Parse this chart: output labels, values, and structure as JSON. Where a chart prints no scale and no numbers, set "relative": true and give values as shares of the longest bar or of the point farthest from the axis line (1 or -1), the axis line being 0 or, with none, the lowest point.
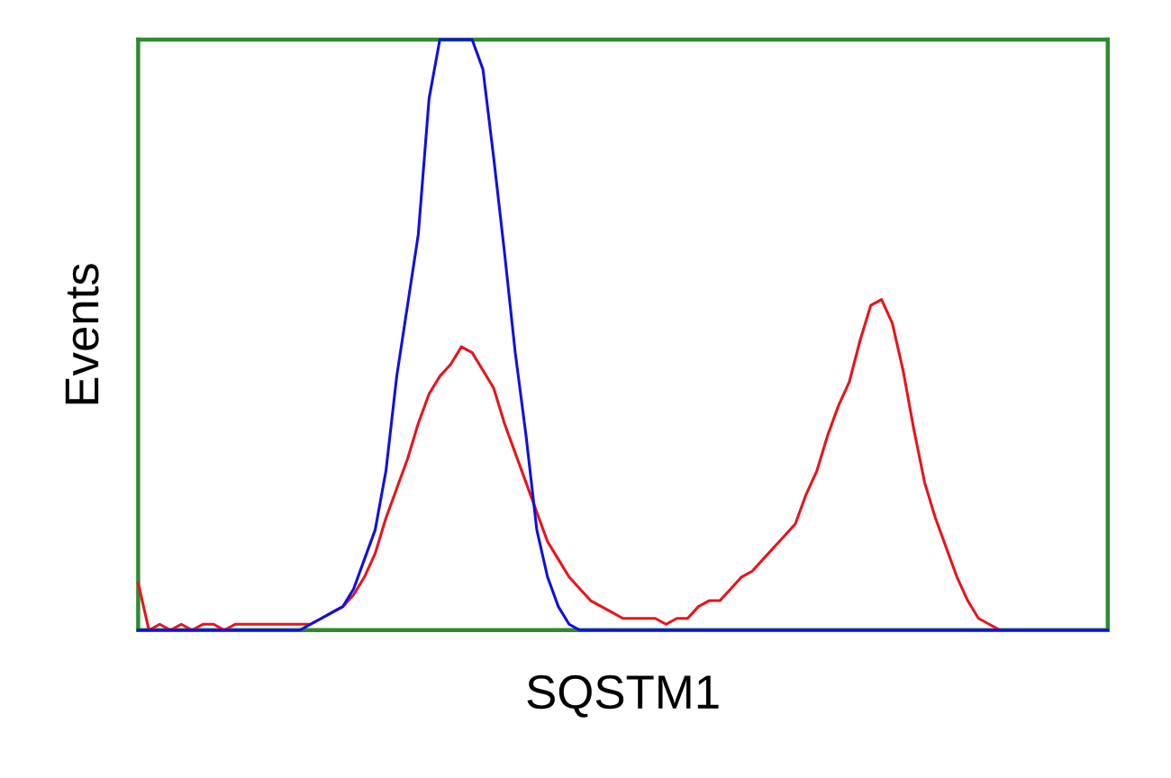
{
  "chart_data": {
    "type": "line",
    "relative": true,
    "xlabel": "SQSTM1",
    "ylabel": "Events",
    "grid": false,
    "marker": "none",
    "line_style": "solid",
    "categories": [
      null,
      null,
      null,
      null,
      null,
      null,
      null,
      null,
      null,
      null,
      null,
      null,
      null,
      null,
      null,
      null,
      null,
      null,
      null,
      null,
      null,
      null,
      null,
      null,
      null,
      null,
      null,
      null,
      null,
      null,
      null,
      null,
      null,
      null,
      null,
      null,
      null,
      null,
      null,
      null,
      null,
      null,
      null,
      null,
      null,
      null,
      null,
      null,
      null,
      null,
      null,
      null,
      null,
      null,
      null,
      null,
      null,
      null,
      null,
      null,
      null,
      null,
      null,
      null,
      null,
      null,
      null,
      null,
      null,
      null,
      null,
      null,
      null,
      null,
      null,
      null,
      null,
      null,
      null,
      null,
      null,
      null,
      null,
      null,
      null,
      null,
      null,
      null,
      null,
      null,
      null
    ],
    "series": [
      {
        "color": "#e8141c",
        "values": [
          0.08,
          0,
          0.01,
          0,
          0.01,
          0,
          0.01,
          0.01,
          0,
          0.01,
          0.01,
          0.01,
          0.01,
          0.01,
          0.01,
          0.01,
          0.01,
          0.02,
          0.03,
          0.04,
          0.06,
          0.09,
          0.13,
          0.19,
          0.24,
          0.29,
          0.35,
          0.4,
          0.43,
          0.45,
          0.48,
          0.47,
          0.44,
          0.41,
          0.35,
          0.3,
          0.25,
          0.2,
          0.15,
          0.12,
          0.09,
          0.07,
          0.05,
          0.04,
          0.03,
          0.02,
          0.02,
          0.02,
          0.02,
          0.01,
          0.02,
          0.02,
          0.04,
          0.05,
          0.05,
          0.07,
          0.09,
          0.1,
          0.12,
          0.14,
          0.16,
          0.18,
          0.23,
          0.27,
          0.33,
          0.38,
          0.42,
          0.49,
          0.55,
          0.56,
          0.52,
          0.44,
          0.34,
          0.25,
          0.19,
          0.14,
          0.09,
          0.05,
          0.02,
          0.01,
          0,
          null,
          null,
          null,
          null,
          null,
          null,
          null,
          null,
          null,
          null
        ]
      },
      {
        "color": "#1010e0",
        "values": [
          0,
          0,
          0,
          0,
          0,
          0,
          0,
          0,
          0,
          0,
          0,
          0,
          0,
          0,
          0,
          0,
          0.01,
          0.02,
          0.03,
          0.04,
          0.07,
          0.12,
          0.17,
          0.27,
          0.43,
          0.55,
          0.67,
          0.9,
          1.0,
          1.0,
          1.0,
          1.0,
          0.95,
          0.8,
          0.64,
          0.47,
          0.33,
          0.17,
          0.09,
          0.04,
          0.01,
          0,
          0,
          0,
          0,
          0,
          0,
          0,
          0,
          0,
          0,
          0,
          0,
          0,
          0,
          0,
          0,
          0,
          0,
          0,
          0,
          0,
          0,
          0,
          0,
          0,
          0,
          0,
          0,
          0,
          0,
          0,
          0,
          0,
          0,
          0,
          0,
          0,
          0,
          0,
          0,
          0,
          0,
          0,
          0,
          0,
          0,
          0,
          0,
          0,
          0
        ]
      }
    ]
  }
}
